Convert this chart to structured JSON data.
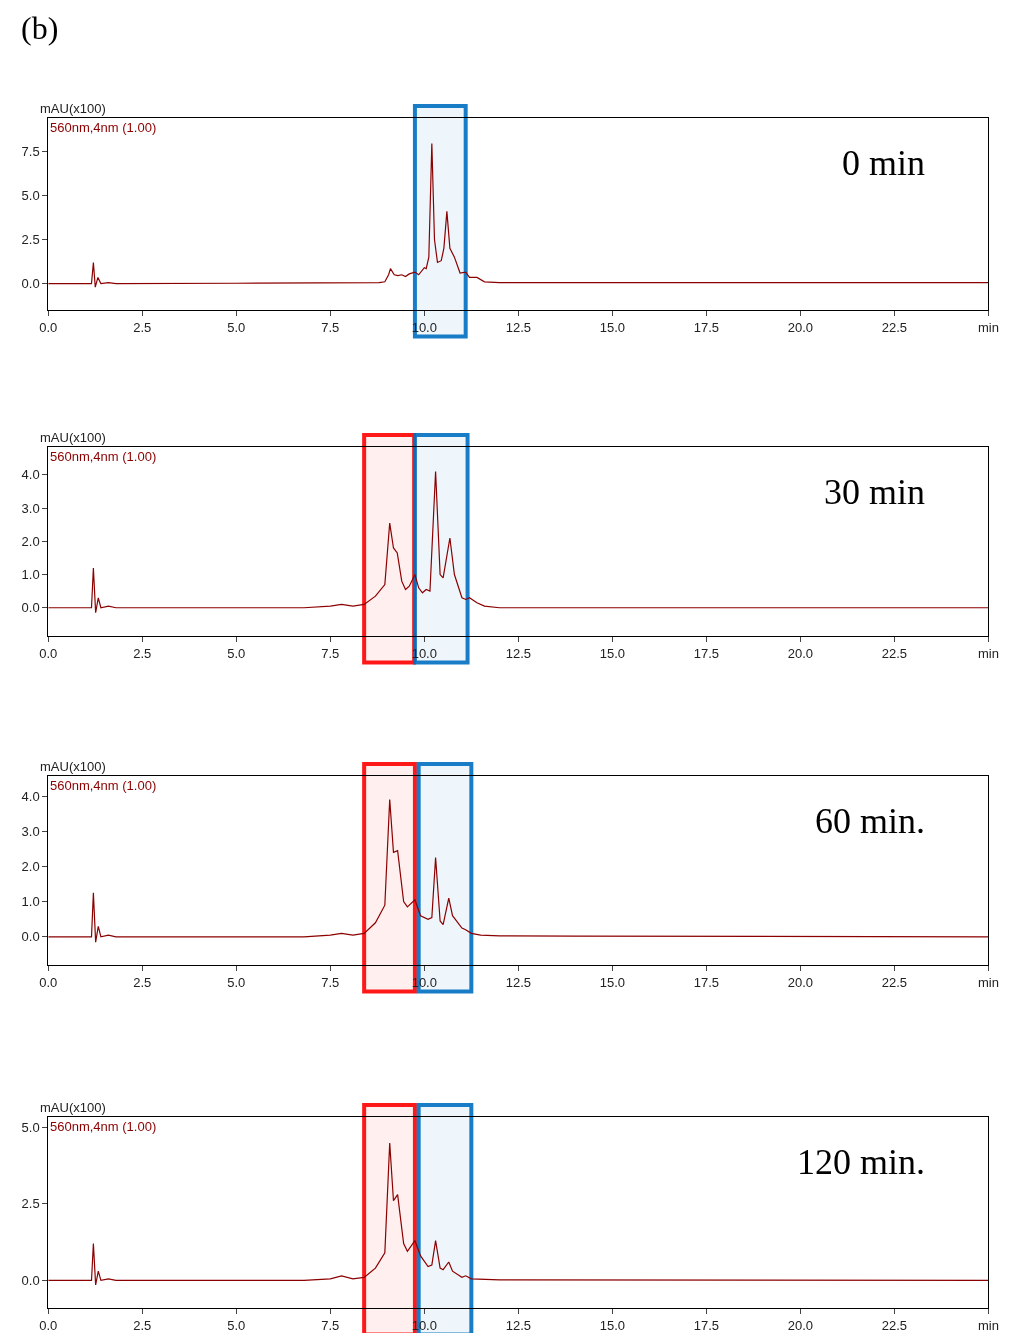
{
  "chart_data": [
    {
      "type": "line",
      "title": "(b)",
      "ylabel": "mAU(x100)",
      "annotations": [
        "0 min"
      ],
      "xlim": [
        0,
        25
      ],
      "xticks": [
        {
          "value": 0,
          "label": "0.0"
        },
        2.5,
        {
          "value": 5,
          "label": "5.0"
        },
        7.5,
        {
          "value": 10,
          "label": "10.0"
        },
        12.5,
        {
          "value": 15,
          "label": "15.0"
        },
        17.5,
        {
          "value": 20,
          "label": "20.0"
        },
        22.5,
        {
          "value": 25,
          "label": "min"
        }
      ],
      "ylim": [
        -1.5,
        9.4
      ],
      "yticks": [
        {
          "value": 0,
          "label": "0.0"
        },
        {
          "value": 2.5,
          "label": "2.5"
        },
        {
          "value": 5,
          "label": "5.0"
        },
        {
          "value": 7.5,
          "label": "7.5"
        }
      ],
      "grid": false,
      "bands": [
        {
          "axis": "x",
          "from": 9.75,
          "to": 11.1,
          "color": "#0070c0"
        }
      ],
      "series": [
        {
          "name": "560nm,4nm (1.00)",
          "color": "#8b0000",
          "x": [
            0,
            1.15,
            1.2,
            1.25,
            1.32,
            1.4,
            1.6,
            1.8,
            5,
            8.8,
            8.95,
            9.05,
            9.1,
            9.2,
            9.3,
            9.4,
            9.5,
            9.6,
            9.75,
            9.85,
            10.0,
            10.05,
            10.12,
            10.2,
            10.27,
            10.35,
            10.45,
            10.52,
            10.6,
            10.68,
            10.8,
            10.95,
            11.1,
            11.2,
            11.4,
            11.6,
            12,
            25
          ],
          "values": [
            0,
            0,
            1.2,
            -0.2,
            0.35,
            0,
            0.05,
            0,
            0.02,
            0.05,
            0.1,
            0.5,
            0.85,
            0.5,
            0.45,
            0.5,
            0.4,
            0.55,
            0.65,
            0.5,
            0.9,
            0.85,
            1.5,
            7.95,
            2.5,
            1.2,
            1.3,
            2.0,
            4.1,
            2.0,
            1.5,
            0.6,
            0.65,
            0.35,
            0.35,
            0.1,
            0.05,
            0.05
          ]
        }
      ]
    },
    {
      "type": "line",
      "ylabel": "mAU(x100)",
      "annotations": [
        "30 min"
      ],
      "xlim": [
        0,
        25
      ],
      "xticks": [
        {
          "value": 0,
          "label": "0.0"
        },
        2.5,
        {
          "value": 5,
          "label": "5.0"
        },
        7.5,
        {
          "value": 10,
          "label": "10.0"
        },
        12.5,
        {
          "value": 15,
          "label": "15.0"
        },
        17.5,
        {
          "value": 20,
          "label": "20.0"
        },
        22.5,
        {
          "value": 25,
          "label": "min"
        }
      ],
      "ylim": [
        -0.85,
        4.84
      ],
      "yticks": [
        {
          "value": 0,
          "label": "0.0"
        },
        {
          "value": 1,
          "label": "1.0"
        },
        {
          "value": 2,
          "label": "2.0"
        },
        {
          "value": 3,
          "label": "3.0"
        },
        {
          "value": 4,
          "label": "4.0"
        }
      ],
      "grid": false,
      "bands": [
        {
          "axis": "x",
          "from": 8.4,
          "to": 9.73,
          "color": "#ff0000"
        },
        {
          "axis": "x",
          "from": 9.75,
          "to": 11.15,
          "color": "#0070c0"
        }
      ],
      "series": [
        {
          "name": "560nm,4nm (1.00)",
          "color": "#8b0000",
          "x": [
            0,
            1.15,
            1.2,
            1.26,
            1.33,
            1.4,
            1.6,
            1.8,
            6.8,
            7.5,
            7.8,
            8.1,
            8.4,
            8.7,
            8.95,
            9.08,
            9.18,
            9.28,
            9.4,
            9.5,
            9.6,
            9.75,
            9.85,
            9.95,
            10.05,
            10.15,
            10.3,
            10.42,
            10.5,
            10.68,
            10.8,
            11.0,
            11.1,
            11.2,
            11.4,
            11.6,
            12,
            25
          ],
          "values": [
            0,
            0,
            1.2,
            -0.15,
            0.3,
            0,
            0.05,
            0,
            0,
            0.05,
            0.1,
            0.05,
            0.1,
            0.35,
            0.7,
            2.55,
            1.8,
            1.65,
            0.8,
            0.55,
            0.65,
            1.0,
            0.6,
            0.45,
            0.55,
            0.5,
            4.1,
            1.0,
            0.9,
            2.1,
            1.0,
            0.3,
            0.25,
            0.3,
            0.15,
            0.05,
            0,
            0
          ]
        }
      ]
    },
    {
      "type": "line",
      "ylabel": "mAU(x100)",
      "annotations": [
        "60 min."
      ],
      "xlim": [
        0,
        25
      ],
      "xticks": [
        {
          "value": 0,
          "label": "0.0"
        },
        2.5,
        {
          "value": 5,
          "label": "5.0"
        },
        7.5,
        {
          "value": 10,
          "label": "10.0"
        },
        12.5,
        {
          "value": 15,
          "label": "15.0"
        },
        17.5,
        {
          "value": 20,
          "label": "20.0"
        },
        22.5,
        {
          "value": 25,
          "label": "min"
        }
      ],
      "ylim": [
        -0.8,
        4.57
      ],
      "yticks": [
        {
          "value": 0,
          "label": "0.0"
        },
        {
          "value": 1,
          "label": "1.0"
        },
        {
          "value": 2,
          "label": "2.0"
        },
        {
          "value": 3,
          "label": "3.0"
        },
        {
          "value": 4,
          "label": "4.0"
        }
      ],
      "grid": false,
      "bands": [
        {
          "axis": "x",
          "from": 8.4,
          "to": 9.75,
          "color": "#ff0000"
        },
        {
          "axis": "x",
          "from": 9.85,
          "to": 11.25,
          "color": "#0070c0"
        }
      ],
      "series": [
        {
          "name": "560nm,4nm (1.00)",
          "color": "#8b0000",
          "x": [
            0,
            1.15,
            1.2,
            1.26,
            1.33,
            1.4,
            1.6,
            1.8,
            6.8,
            7.5,
            7.8,
            8.1,
            8.4,
            8.7,
            8.95,
            9.08,
            9.18,
            9.29,
            9.45,
            9.55,
            9.75,
            9.9,
            10.1,
            10.2,
            10.3,
            10.42,
            10.5,
            10.65,
            10.75,
            11.0,
            11.1,
            11.25,
            11.5,
            12,
            14,
            25
          ],
          "values": [
            0,
            0,
            1.25,
            -0.15,
            0.3,
            0,
            0.05,
            0,
            0,
            0.05,
            0.1,
            0.05,
            0.1,
            0.4,
            0.9,
            3.9,
            2.4,
            2.45,
            1.0,
            0.85,
            1.05,
            0.6,
            0.5,
            0.55,
            2.25,
            0.45,
            0.35,
            1.1,
            0.6,
            0.25,
            0.2,
            0.1,
            0.05,
            0.03,
            0.02,
            0
          ]
        }
      ]
    },
    {
      "type": "line",
      "ylabel": "mAU(x100)",
      "annotations": [
        "120 min."
      ],
      "xlim": [
        0,
        25
      ],
      "xticks": [
        {
          "value": 0,
          "label": "0.0"
        },
        2.5,
        {
          "value": 5,
          "label": "5.0"
        },
        7.5,
        {
          "value": 10,
          "label": "10.0"
        },
        12.5,
        {
          "value": 15,
          "label": "15.0"
        },
        17.5,
        {
          "value": 20,
          "label": "20.0"
        },
        22.5,
        {
          "value": 25,
          "label": "min"
        }
      ],
      "ylim": [
        -0.9,
        5.33
      ],
      "yticks": [
        {
          "value": 0,
          "label": "0.0"
        },
        {
          "value": 2.5,
          "label": "2.5"
        },
        {
          "value": 5,
          "label": "5.0"
        }
      ],
      "grid": false,
      "bands": [
        {
          "axis": "x",
          "from": 8.4,
          "to": 9.75,
          "color": "#ff0000"
        },
        {
          "axis": "x",
          "from": 9.85,
          "to": 11.25,
          "color": "#0070c0"
        }
      ],
      "series": [
        {
          "name": "560nm,4nm (1.00)",
          "color": "#8b0000",
          "x": [
            0,
            1.15,
            1.2,
            1.26,
            1.33,
            1.4,
            1.6,
            1.8,
            6.8,
            7.5,
            7.8,
            8.1,
            8.4,
            8.7,
            8.95,
            9.08,
            9.18,
            9.29,
            9.45,
            9.55,
            9.75,
            9.9,
            10.1,
            10.2,
            10.3,
            10.42,
            10.5,
            10.65,
            10.75,
            11.0,
            11.1,
            11.25,
            12,
            25
          ],
          "values": [
            0,
            0,
            1.2,
            -0.15,
            0.3,
            0,
            0.05,
            0,
            0,
            0.05,
            0.15,
            0.05,
            0.1,
            0.4,
            0.9,
            4.48,
            2.6,
            2.8,
            1.2,
            0.95,
            1.3,
            0.8,
            0.45,
            0.5,
            1.3,
            0.4,
            0.35,
            0.6,
            0.3,
            0.1,
            0.15,
            0.05,
            0.02,
            0
          ]
        }
      ]
    }
  ]
}
